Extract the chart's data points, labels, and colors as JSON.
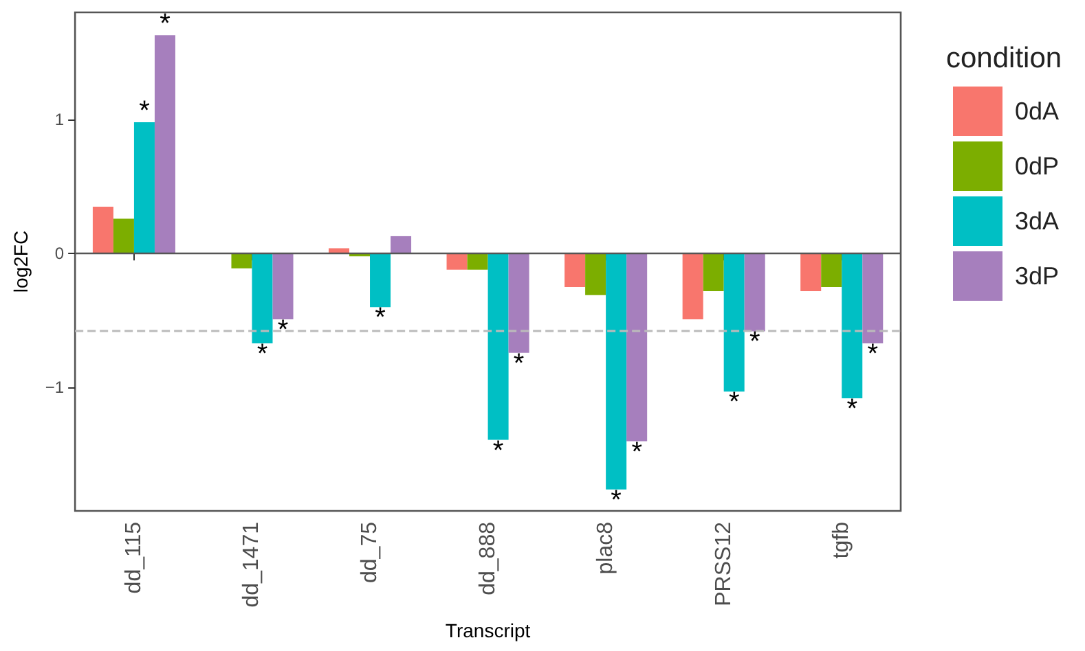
{
  "chart_data": {
    "type": "bar",
    "xlabel": "Transcript",
    "ylabel": "log2FC",
    "legend_title": "condition",
    "categories": [
      "dd_115",
      "dd_1471",
      "dd_75",
      "dd_888",
      "plac8",
      "PRSS12",
      "tgfb"
    ],
    "series": [
      {
        "name": "0dA",
        "color": "#f8766d",
        "values": [
          0.35,
          0,
          0.04,
          -0.12,
          -0.25,
          -0.49,
          -0.28
        ]
      },
      {
        "name": "0dP",
        "color": "#7cae00",
        "values": [
          0.26,
          -0.11,
          -0.02,
          -0.12,
          -0.31,
          -0.28,
          -0.25
        ]
      },
      {
        "name": "3dA",
        "color": "#00bfc4",
        "values": [
          0.98,
          -0.67,
          -0.4,
          -1.39,
          -1.76,
          -1.03,
          -1.08
        ],
        "value_labels": [
          "*",
          "*",
          "*",
          "*",
          "*",
          "*",
          "*"
        ]
      },
      {
        "name": "3dP",
        "color": "#a67fbd",
        "values": [
          1.63,
          -0.49,
          0.13,
          -0.74,
          -1.4,
          -0.58,
          -0.67
        ],
        "value_labels": [
          "*",
          "*",
          null,
          "*",
          "*",
          "*",
          "*"
        ]
      }
    ],
    "ylim": [
      -1.92,
      1.8
    ],
    "yticks": [
      -1,
      0,
      1
    ],
    "grid": false,
    "legend": "right",
    "ref_lines": [
      {
        "axis": "y",
        "value": 0,
        "color": "#555555",
        "line_style": "solid"
      },
      {
        "axis": "y",
        "value": -0.585,
        "color": "#bbbbbb",
        "line_style": "dashed"
      }
    ]
  }
}
